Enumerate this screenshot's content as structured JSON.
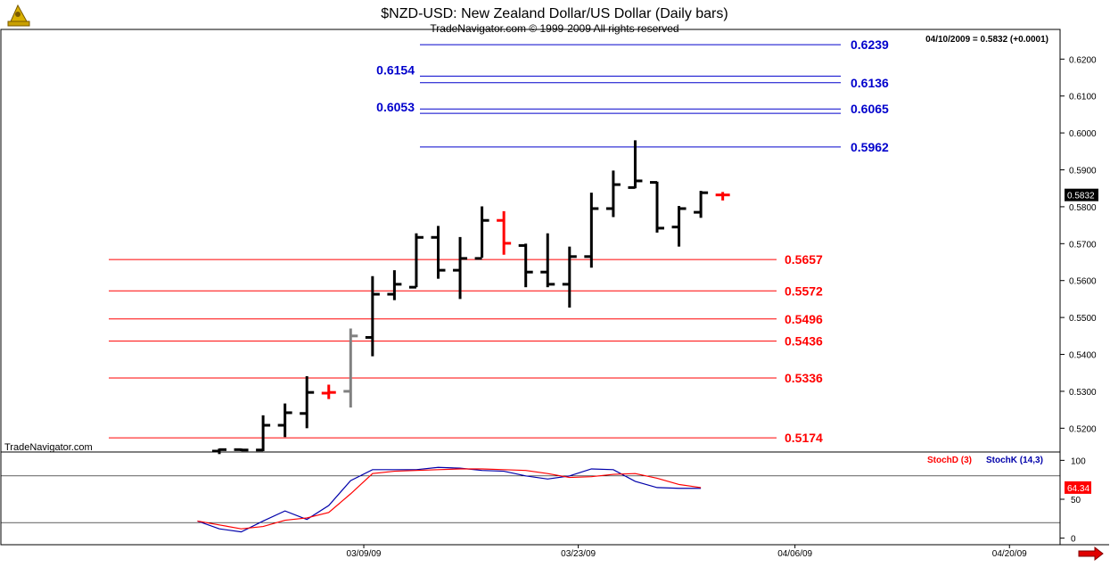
{
  "header": {
    "title": "$NZD-USD:  New Zealand Dollar/US Dollar  (Daily bars)",
    "subtitle": "TradeNavigator.com © 1999-2009 All rights reserved",
    "quote": "04/10/2009 = 0.5832 (+0.0001)",
    "watermark": "TradeNavigator.com",
    "logo_icon": "sextant-icon",
    "nav_icon": "arrow-right-icon"
  },
  "colors": {
    "bar": "#000000",
    "bar_gray": "#808080",
    "bar_red": "#ff0000",
    "bar_green": "#008000",
    "resistance": "#0000cc",
    "support": "#ff0000",
    "stoch_d": "#ff0000",
    "stoch_k": "#0000aa"
  },
  "chart_data": [
    {
      "type": "ohlc",
      "ylim": [
        0.5138,
        0.6278
      ],
      "yticks": [
        "0.5200",
        "0.5300",
        "0.5400",
        "0.5500",
        "0.5600",
        "0.5700",
        "0.5800",
        "0.5900",
        "0.6000",
        "0.6100",
        "0.6200"
      ],
      "ytick_values": [
        0.52,
        0.53,
        0.54,
        0.55,
        0.56,
        0.57,
        0.58,
        0.59,
        0.6,
        0.61,
        0.62
      ],
      "xticks": [
        "03/09/09",
        "03/23/09",
        "04/06/09",
        "04/20/09"
      ],
      "xtick_index": [
        6.6,
        16.4,
        26.3,
        36.1
      ],
      "last_price_label": "0.5832",
      "bars": [
        {
          "i": 0,
          "o": 0.5138,
          "h": 0.5145,
          "l": 0.513,
          "c": 0.5142,
          "color": "black"
        },
        {
          "i": 1,
          "o": 0.5142,
          "h": 0.5145,
          "l": 0.5138,
          "c": 0.5141,
          "color": "black"
        },
        {
          "i": 2,
          "o": 0.5141,
          "h": 0.5235,
          "l": 0.5138,
          "c": 0.5208,
          "color": "black"
        },
        {
          "i": 3,
          "o": 0.5208,
          "h": 0.5267,
          "l": 0.5176,
          "c": 0.5242,
          "color": "black"
        },
        {
          "i": 4,
          "o": 0.524,
          "h": 0.5341,
          "l": 0.52,
          "c": 0.5297,
          "color": "black"
        },
        {
          "i": 5,
          "o": 0.5295,
          "h": 0.5318,
          "l": 0.5279,
          "c": 0.5297,
          "color": "red"
        },
        {
          "i": 6,
          "o": 0.53,
          "h": 0.547,
          "l": 0.5256,
          "c": 0.545,
          "color": "gray"
        },
        {
          "i": 7,
          "o": 0.5446,
          "h": 0.5612,
          "l": 0.5395,
          "c": 0.5563,
          "color": "black"
        },
        {
          "i": 8,
          "o": 0.5563,
          "h": 0.5628,
          "l": 0.5547,
          "c": 0.559,
          "color": "black"
        },
        {
          "i": 9,
          "o": 0.5582,
          "h": 0.5728,
          "l": 0.5582,
          "c": 0.5717,
          "color": "black"
        },
        {
          "i": 10,
          "o": 0.5717,
          "h": 0.5748,
          "l": 0.5605,
          "c": 0.5628,
          "color": "black"
        },
        {
          "i": 11,
          "o": 0.5628,
          "h": 0.5718,
          "l": 0.555,
          "c": 0.566,
          "color": "black"
        },
        {
          "i": 12,
          "o": 0.566,
          "h": 0.5801,
          "l": 0.5662,
          "c": 0.5763,
          "color": "black"
        },
        {
          "i": 13,
          "o": 0.5763,
          "h": 0.5788,
          "l": 0.567,
          "c": 0.5701,
          "color": "red"
        },
        {
          "i": 14,
          "o": 0.5695,
          "h": 0.57,
          "l": 0.5582,
          "c": 0.5623,
          "color": "black"
        },
        {
          "i": 15,
          "o": 0.5623,
          "h": 0.5728,
          "l": 0.5582,
          "c": 0.559,
          "color": "black"
        },
        {
          "i": 16,
          "o": 0.559,
          "h": 0.5692,
          "l": 0.5527,
          "c": 0.5665,
          "color": "black"
        },
        {
          "i": 17,
          "o": 0.5665,
          "h": 0.5838,
          "l": 0.5635,
          "c": 0.5795,
          "color": "black"
        },
        {
          "i": 18,
          "o": 0.5795,
          "h": 0.5898,
          "l": 0.5772,
          "c": 0.586,
          "color": "black"
        },
        {
          "i": 19,
          "o": 0.5852,
          "h": 0.598,
          "l": 0.585,
          "c": 0.587,
          "color": "black"
        },
        {
          "i": 20,
          "o": 0.5866,
          "h": 0.5868,
          "l": 0.573,
          "c": 0.5742,
          "color": "black"
        },
        {
          "i": 21,
          "o": 0.5745,
          "h": 0.5802,
          "l": 0.5692,
          "c": 0.5795,
          "color": "black"
        },
        {
          "i": 22,
          "o": 0.5785,
          "h": 0.5843,
          "l": 0.577,
          "c": 0.5838,
          "color": "black"
        },
        {
          "i": 23,
          "o": 0.5832,
          "h": 0.584,
          "l": 0.5817,
          "c": 0.5832,
          "color": "red"
        }
      ],
      "resistance_levels": [
        {
          "value": 0.6239,
          "label": "0.6239"
        },
        {
          "value": 0.6154,
          "label": "0.6154"
        },
        {
          "value": 0.6136,
          "label": "0.6136"
        },
        {
          "value": 0.6065,
          "label": "0.6065"
        },
        {
          "value": 0.6053,
          "label": "0.6053"
        },
        {
          "value": 0.5962,
          "label": "0.5962"
        }
      ],
      "support_levels": [
        {
          "value": 0.5657,
          "label": "0.5657"
        },
        {
          "value": 0.5572,
          "label": "0.5572"
        },
        {
          "value": 0.5496,
          "label": "0.5496"
        },
        {
          "value": 0.5436,
          "label": "0.5436"
        },
        {
          "value": 0.5336,
          "label": "0.5336"
        },
        {
          "value": 0.5174,
          "label": "0.5174"
        }
      ]
    },
    {
      "type": "line",
      "ylim": [
        -5,
        105
      ],
      "yticks": [
        "100",
        "50",
        "0"
      ],
      "ytick_values": [
        100,
        50,
        0
      ],
      "reference_lines": [
        80,
        20
      ],
      "last_value_label": "64.34",
      "series": [
        {
          "name": "StochD (3)",
          "color": "red",
          "x": [
            -1,
            0,
            1,
            2,
            3,
            4,
            5,
            6,
            7,
            8,
            9,
            10,
            11,
            12,
            13,
            14,
            15,
            16,
            17,
            18,
            19,
            20,
            21,
            22
          ],
          "values": [
            22,
            17,
            12,
            15,
            23,
            26,
            33,
            57,
            83,
            86,
            87,
            88,
            89,
            89,
            88,
            87,
            83,
            78,
            79,
            82,
            83,
            77,
            69,
            65
          ]
        },
        {
          "name": "StochK (14,3)",
          "color": "blue",
          "x": [
            -1,
            0,
            1,
            2,
            3,
            4,
            5,
            6,
            7,
            8,
            9,
            10,
            11,
            12,
            13,
            14,
            15,
            16,
            17,
            18,
            19,
            20,
            21,
            22
          ],
          "values": [
            22,
            12,
            8,
            22,
            35,
            24,
            42,
            74,
            88,
            88,
            88,
            91,
            90,
            87,
            86,
            80,
            76,
            80,
            89,
            88,
            73,
            65,
            64,
            64
          ]
        }
      ]
    }
  ]
}
